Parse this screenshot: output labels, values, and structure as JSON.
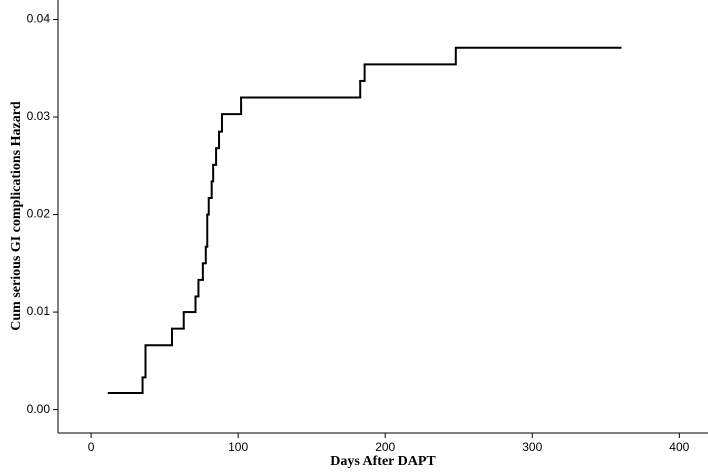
{
  "chart_data": {
    "type": "step",
    "x_label": "Days After DAPT",
    "y_label": "Cum serious GI complications Hazard",
    "x": [
      12,
      35,
      37,
      55,
      63,
      71,
      73,
      76,
      78,
      79,
      80,
      82,
      83,
      85,
      87,
      89,
      102,
      183,
      186,
      248,
      360
    ],
    "values": [
      0.0017,
      0.0033,
      0.0066,
      0.0083,
      0.01,
      0.0116,
      0.0133,
      0.015,
      0.0167,
      0.02,
      0.0217,
      0.0234,
      0.0251,
      0.0268,
      0.0285,
      0.0303,
      0.032,
      0.0337,
      0.0354,
      0.0371,
      0.0371
    ],
    "color": "#000000",
    "xlim": [
      -22.5,
      419.5
    ],
    "ylim": [
      -0.0024,
      0.042
    ],
    "xticks": [
      0,
      100,
      200,
      300,
      400
    ],
    "yticks": [
      {
        "value": 0,
        "label": "0.00"
      },
      {
        "value": 0.01,
        "label": "0.01"
      },
      {
        "value": 0.02,
        "label": "0.02"
      },
      {
        "value": 0.03,
        "label": "0.03"
      },
      {
        "value": 0.04,
        "label": "0.04"
      }
    ]
  }
}
